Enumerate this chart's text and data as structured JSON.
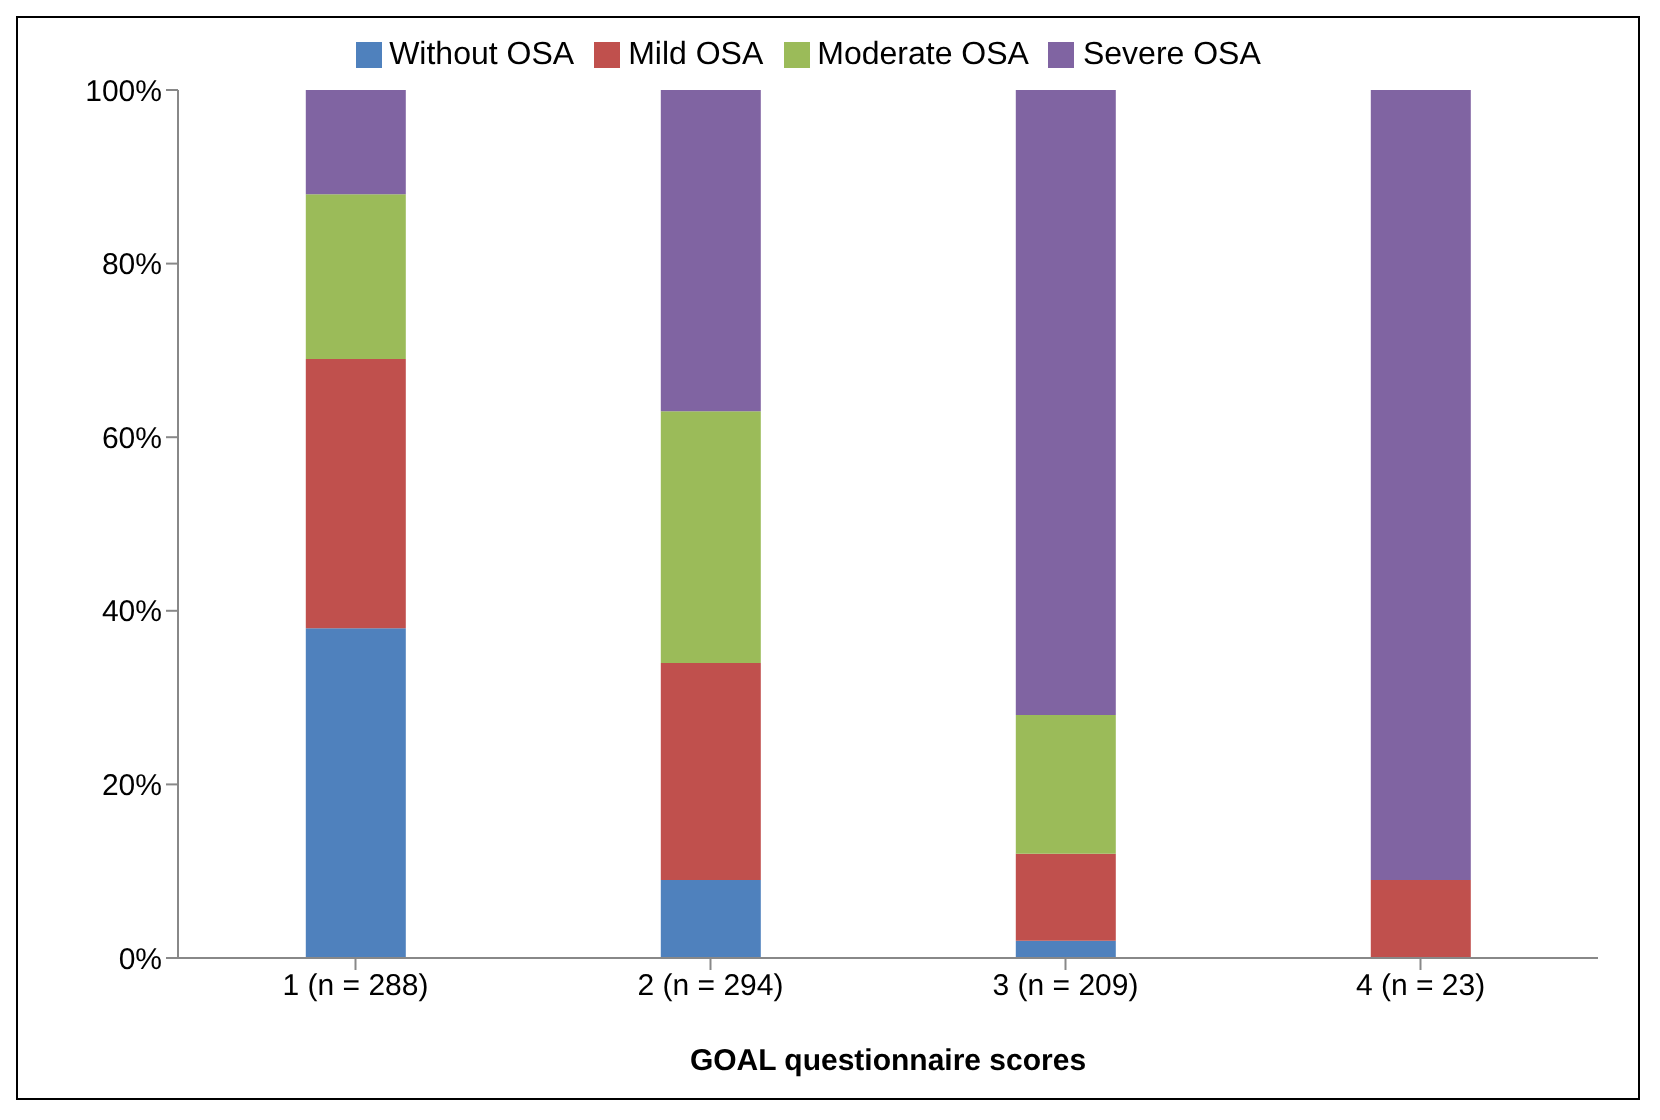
{
  "chart_data": {
    "type": "bar",
    "stacked": true,
    "xlabel": "GOAL questionnaire scores",
    "categories": [
      "1 (n = 288)",
      "2 (n = 294)",
      "3 (n = 209)",
      "4 (n = 23)"
    ],
    "series": [
      {
        "name": "Without OSA",
        "color": "#4f81bd",
        "values": [
          38,
          9,
          2,
          0
        ]
      },
      {
        "name": "Mild OSA",
        "color": "#c0504d",
        "values": [
          31,
          25,
          10,
          9
        ]
      },
      {
        "name": "Moderate OSA",
        "color": "#9bbb59",
        "values": [
          19,
          29,
          16,
          0
        ]
      },
      {
        "name": "Severe OSA",
        "color": "#8064a2",
        "values": [
          12,
          37,
          72,
          91
        ]
      }
    ],
    "ylim": [
      0,
      100
    ],
    "yticks": [
      {
        "value": 0,
        "label": "0%"
      },
      {
        "value": 20,
        "label": "20%"
      },
      {
        "value": 40,
        "label": "40%"
      },
      {
        "value": 60,
        "label": "60%"
      },
      {
        "value": 80,
        "label": "80%"
      },
      {
        "value": 100,
        "label": "100%"
      }
    ],
    "grid": false,
    "legend": "top"
  }
}
